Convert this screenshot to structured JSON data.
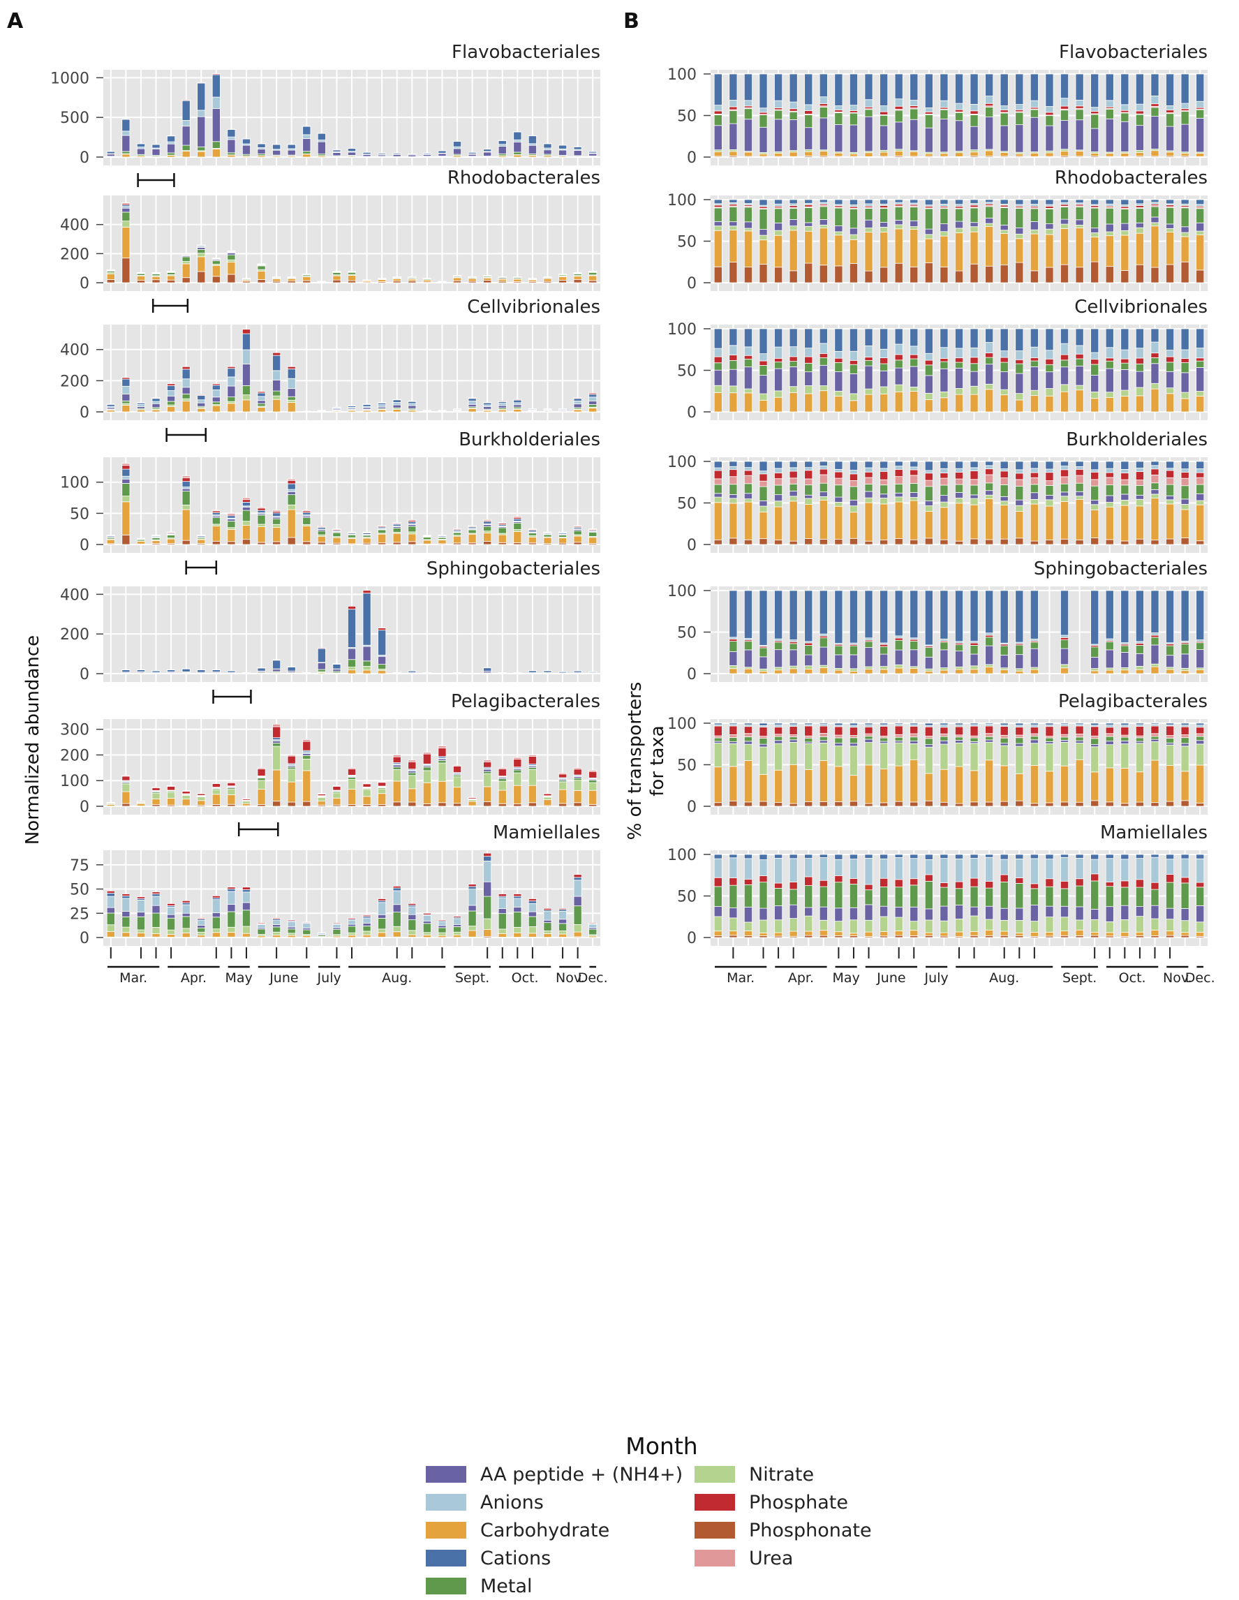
{
  "figure": {
    "panel_a_label": "A",
    "panel_b_label": "B",
    "y_label_left": "Normalized abundance",
    "y_label_right_1": "% of transporters",
    "y_label_right_2": "for taxa",
    "x_title": "Month"
  },
  "legend": {
    "items": [
      {
        "key": "aa",
        "label": "AA peptide + (NH4+)",
        "color": "#6a63a3"
      },
      {
        "key": "anions",
        "label": "Anions",
        "color": "#a9c8d8"
      },
      {
        "key": "carb",
        "label": "Carbohydrate",
        "color": "#e5a33e"
      },
      {
        "key": "cations",
        "label": "Cations",
        "color": "#4a72a8"
      },
      {
        "key": "metal",
        "label": "Metal",
        "color": "#5f9a4c"
      },
      {
        "key": "nitrate",
        "label": "Nitrate",
        "color": "#b4d38f"
      },
      {
        "key": "phosphate",
        "label": "Phosphate",
        "color": "#c12a2f"
      },
      {
        "key": "phosphonate",
        "label": "Phosphonate",
        "color": "#b25a32"
      },
      {
        "key": "urea",
        "label": "Urea",
        "color": "#e09898"
      }
    ]
  },
  "chart_data": {
    "type": "bar",
    "stacked": true,
    "bars_per_panel": 33,
    "x_ticks": {
      "panel_a_tick_bars": [
        1,
        3,
        4,
        5,
        8,
        9,
        10,
        12,
        14,
        16,
        17,
        20,
        21,
        23,
        26,
        27,
        28,
        29,
        31,
        32
      ],
      "panel_b_tick_bars": [
        2,
        4,
        5,
        6,
        9,
        10,
        11,
        13,
        14,
        17,
        18,
        20,
        21,
        22,
        26,
        27,
        28,
        29,
        30,
        31
      ]
    },
    "months": [
      "Mar.",
      "Apr.",
      "May",
      "June",
      "July",
      "Aug.",
      "Sept.",
      "Oct.",
      "Nov.",
      "Dec."
    ],
    "month_groups": [
      {
        "label": "Mar.",
        "start": 1,
        "end": 4
      },
      {
        "label": "Apr.",
        "start": 5,
        "end": 8
      },
      {
        "label": "May",
        "start": 9,
        "end": 10
      },
      {
        "label": "June",
        "start": 11,
        "end": 14
      },
      {
        "label": "July",
        "start": 15,
        "end": 16
      },
      {
        "label": "Aug.",
        "start": 17,
        "end": 23
      },
      {
        "label": "Sept.",
        "start": 24,
        "end": 26
      },
      {
        "label": "Oct.",
        "start": 27,
        "end": 30
      },
      {
        "label": "Nov.",
        "start": 31,
        "end": 32
      },
      {
        "label": "Dec.",
        "start": 33,
        "end": 33
      }
    ],
    "taxa": [
      {
        "name": "Flavobacteriales",
        "ylim_a": [
          0,
          1100
        ],
        "yticks_a": [
          0,
          500,
          1000
        ],
        "totals": [
          70,
          480,
          170,
          160,
          270,
          720,
          940,
          1050,
          350,
          230,
          170,
          160,
          160,
          390,
          300,
          90,
          110,
          60,
          50,
          50,
          40,
          50,
          80,
          200,
          60,
          100,
          210,
          320,
          270,
          170,
          150,
          130,
          70
        ],
        "fractions_abs": {
          "aa": 0.42,
          "anions": 0.1,
          "carb": 0.08,
          "cations": 0.3,
          "metal": 0.08,
          "nitrate": 0.01,
          "phosphate": 0.01,
          "phosphonate": 0.0,
          "urea": 0.0
        },
        "fractions_pct": {
          "aa": 0.38,
          "anions": 0.08,
          "carb": 0.05,
          "cations": 0.38,
          "metal": 0.14,
          "nitrate": 0.02,
          "phosphate": 0.03,
          "phosphonate": 0.01,
          "urea": 0.01
        },
        "bracket": [
          2.3,
          4.7
        ]
      },
      {
        "name": "Rhodobacterales",
        "ylim_a": [
          0,
          600
        ],
        "yticks_a": [
          0,
          200,
          400
        ],
        "totals": [
          90,
          550,
          70,
          70,
          80,
          200,
          260,
          170,
          220,
          30,
          130,
          40,
          40,
          60,
          10,
          80,
          80,
          20,
          30,
          40,
          40,
          30,
          10,
          50,
          40,
          50,
          40,
          40,
          30,
          40,
          60,
          70,
          80
        ],
        "fractions_abs": {
          "aa": 0.05,
          "anions": 0.02,
          "carb": 0.4,
          "cations": 0.02,
          "metal": 0.15,
          "nitrate": 0.08,
          "phosphate": 0.02,
          "phosphonate": 0.25,
          "urea": 0.01
        },
        "fractions_pct": {
          "aa": 0.07,
          "anions": 0.02,
          "carb": 0.4,
          "cations": 0.05,
          "metal": 0.18,
          "nitrate": 0.05,
          "phosphate": 0.02,
          "phosphonate": 0.2,
          "urea": 0.01
        },
        "bracket": [
          3.3,
          5.6
        ]
      },
      {
        "name": "Cellvibrionales",
        "ylim_a": [
          0,
          560
        ],
        "yticks_a": [
          0,
          200,
          400
        ],
        "totals": [
          50,
          220,
          60,
          90,
          180,
          290,
          110,
          180,
          290,
          530,
          130,
          380,
          290,
          5,
          10,
          30,
          40,
          50,
          60,
          80,
          70,
          10,
          10,
          20,
          90,
          60,
          70,
          80,
          20,
          20,
          20,
          90,
          120
        ],
        "fractions_abs": {
          "aa": 0.2,
          "anions": 0.2,
          "carb": 0.2,
          "cations": 0.2,
          "metal": 0.1,
          "nitrate": 0.05,
          "phosphate": 0.05,
          "phosphonate": 0.0,
          "urea": 0.0
        },
        "fractions_pct": {
          "aa": 0.25,
          "anions": 0.12,
          "carb": 0.22,
          "cations": 0.25,
          "metal": 0.1,
          "nitrate": 0.08,
          "phosphate": 0.06,
          "phosphonate": 0.0,
          "urea": 0.0
        },
        "bracket": [
          4.2,
          6.8
        ]
      },
      {
        "name": "Burkholderiales",
        "ylim_a": [
          0,
          140
        ],
        "yticks_a": [
          0,
          50,
          100
        ],
        "totals": [
          15,
          130,
          10,
          15,
          20,
          110,
          15,
          55,
          50,
          75,
          60,
          55,
          105,
          55,
          30,
          25,
          20,
          20,
          30,
          35,
          40,
          15,
          15,
          25,
          30,
          40,
          35,
          45,
          25,
          20,
          20,
          30,
          25
        ],
        "fractions_abs": {
          "aa": 0.05,
          "anions": 0.03,
          "carb": 0.4,
          "cations": 0.08,
          "metal": 0.2,
          "nitrate": 0.07,
          "phosphate": 0.05,
          "phosphonate": 0.09,
          "urea": 0.03
        },
        "fractions_pct": {
          "aa": 0.06,
          "anions": 0.04,
          "carb": 0.42,
          "cations": 0.08,
          "metal": 0.12,
          "nitrate": 0.06,
          "phosphate": 0.08,
          "phosphonate": 0.06,
          "urea": 0.08
        },
        "bracket": [
          5.5,
          7.5
        ]
      },
      {
        "name": "Sphingobacteriales",
        "ylim_a": [
          0,
          440
        ],
        "yticks_a": [
          0,
          200,
          400
        ],
        "totals": [
          0,
          20,
          20,
          15,
          20,
          25,
          20,
          20,
          15,
          5,
          30,
          70,
          35,
          5,
          130,
          50,
          340,
          420,
          230,
          5,
          15,
          5,
          0,
          5,
          0,
          30,
          5,
          5,
          15,
          15,
          10,
          15,
          10
        ],
        "fractions_abs": {
          "aa": 0.2,
          "anions": 0.02,
          "carb": 0.05,
          "cations": 0.55,
          "metal": 0.1,
          "nitrate": 0.04,
          "phosphate": 0.04,
          "phosphonate": 0.0,
          "urea": 0.0
        },
        "fractions_pct": {
          "aa": 0.18,
          "anions": 0.02,
          "carb": 0.05,
          "cations": 0.6,
          "metal": 0.1,
          "nitrate": 0.03,
          "phosphate": 0.02,
          "phosphonate": 0.0,
          "urea": 0.0
        },
        "bracket": [
          7.3,
          9.8
        ]
      },
      {
        "name": "Pelagibacterales",
        "ylim_a": [
          0,
          340
        ],
        "yticks_a": [
          0,
          100,
          200,
          300
        ],
        "totals": [
          15,
          120,
          20,
          75,
          80,
          60,
          50,
          90,
          95,
          30,
          150,
          320,
          200,
          260,
          50,
          80,
          150,
          90,
          95,
          200,
          180,
          210,
          235,
          160,
          35,
          180,
          150,
          190,
          200,
          50,
          130,
          150,
          140
        ],
        "fractions_abs": {
          "aa": 0.03,
          "anions": 0.02,
          "carb": 0.38,
          "cations": 0.02,
          "metal": 0.05,
          "nitrate": 0.25,
          "phosphate": 0.15,
          "phosphonate": 0.07,
          "urea": 0.03
        },
        "fractions_pct": {
          "aa": 0.03,
          "anions": 0.02,
          "carb": 0.42,
          "cations": 0.02,
          "metal": 0.05,
          "nitrate": 0.28,
          "phosphate": 0.1,
          "phosphonate": 0.05,
          "urea": 0.03
        },
        "bracket": [
          9.0,
          11.6
        ]
      },
      {
        "name": "Mamiellales",
        "ylim_a": [
          0,
          90
        ],
        "yticks_a": [
          0,
          25,
          50,
          75
        ],
        "totals": [
          48,
          45,
          42,
          47,
          35,
          38,
          20,
          43,
          52,
          52,
          15,
          20,
          18,
          16,
          5,
          15,
          20,
          23,
          40,
          53,
          35,
          25,
          18,
          22,
          55,
          87,
          45,
          45,
          40,
          30,
          30,
          65,
          15
        ],
        "fractions_abs": {
          "aa": 0.12,
          "anions": 0.25,
          "carb": 0.1,
          "cations": 0.05,
          "metal": 0.3,
          "nitrate": 0.12,
          "phosphate": 0.05,
          "phosphonate": 0.01,
          "urea": 0.0
        },
        "fractions_pct": {
          "aa": 0.15,
          "anions": 0.25,
          "carb": 0.05,
          "cations": 0.05,
          "metal": 0.25,
          "nitrate": 0.15,
          "phosphate": 0.08,
          "phosphonate": 0.02,
          "urea": 0.0
        },
        "bracket": null
      }
    ]
  }
}
